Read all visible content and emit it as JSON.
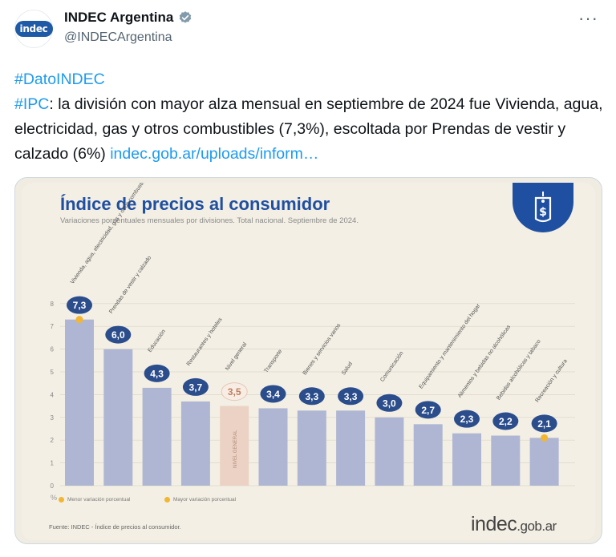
{
  "tweet": {
    "avatar_text": "indec",
    "display_name": "INDEC Argentina",
    "handle": "@INDECArgentina",
    "more_label": "···",
    "hashtag1": "#DatoINDEC",
    "hashtag2": "#IPC",
    "body_text": ": la división con mayor alza mensual en septiembre de 2024 fue Vivienda, agua, electricidad, gas y otros combustibles (7,3%), escoltada por Prendas de vestir y calzado (6%) ",
    "link_text": "indec.gob.ar/uploads/inform…",
    "colors": {
      "link": "#1d9bf0",
      "verified": "#829aab",
      "brand_blue": "#1f4fa0"
    }
  },
  "infographic": {
    "title": "Índice de precios al consumidor",
    "subtitle": "Variaciones porcentuales mensuales por divisiones. Total nacional. Septiembre de 2024.",
    "legend_min": "Menor variación porcentual",
    "legend_max": "Mayor variación porcentual",
    "source": "Fuente: INDEC - Índice de precios al consumidor.",
    "brand_main": "indec",
    "brand_suffix": ".gob.ar",
    "badge_icon": "price-tag-dollar-icon"
  },
  "chart_data": {
    "type": "bar",
    "ylabel": "%",
    "ylim": [
      0,
      8
    ],
    "yticks": [
      0,
      1,
      2,
      3,
      4,
      5,
      6,
      7,
      8
    ],
    "categories": [
      "Vivienda, agua, electricidad, gas y otros combustibles",
      "Prendas de vestir y calzado",
      "Educación",
      "Restaurantes y hoteles",
      "Nivel general",
      "Transporte",
      "Bienes y servicios varios",
      "Salud",
      "Comunicación",
      "Equipamiento y mantenimiento del hogar",
      "Alimentos y bebidas no alcohólicas",
      "Bebidas alcohólicas y tabaco",
      "Recreación y cultura"
    ],
    "values": [
      7.3,
      6.0,
      4.3,
      3.7,
      3.5,
      3.4,
      3.3,
      3.3,
      3.0,
      2.7,
      2.3,
      2.2,
      2.1
    ],
    "value_labels": [
      "7,3",
      "6,0",
      "4,3",
      "3,7",
      "3,5",
      "3,4",
      "3,3",
      "3,3",
      "3,0",
      "2,7",
      "2,3",
      "2,2",
      "2,1"
    ],
    "general_bar_label": "NIVEL GENERAL",
    "highlight": {
      "max_index": 0,
      "min_index": 12
    },
    "colors": {
      "bar": "#aeb6d3",
      "general_bar": "#ecd2c4",
      "marker": "#f2b632",
      "bubble": "#2b4d8c",
      "text": "#ffffff"
    }
  }
}
